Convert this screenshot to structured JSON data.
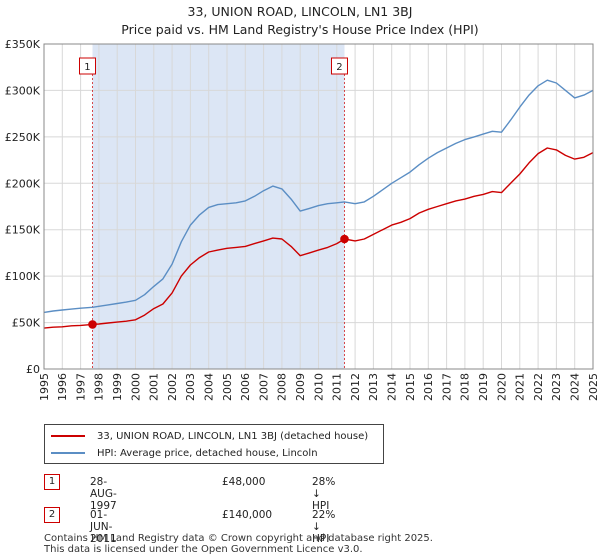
{
  "title": {
    "line1": "33, UNION ROAD, LINCOLN, LN1 3BJ",
    "line2": "Price paid vs. HM Land Registry's House Price Index (HPI)"
  },
  "colors": {
    "property": "#cc0000",
    "hpi": "#5b8ec4",
    "shade": "#dce6f5",
    "grid": "#d8d8d8"
  },
  "chart_data": {
    "type": "line",
    "title": "Price paid vs. HM Land Registry's House Price Index (HPI)",
    "xlabel": "",
    "ylabel": "",
    "xlim": [
      1995,
      2025
    ],
    "ylim": [
      0,
      350000
    ],
    "y_ticks": [
      0,
      50000,
      100000,
      150000,
      200000,
      250000,
      300000,
      350000
    ],
    "y_tick_labels": [
      "£0",
      "£50K",
      "£100K",
      "£150K",
      "£200K",
      "£250K",
      "£300K",
      "£350K"
    ],
    "x_tick_labels": [
      "1995",
      "1996",
      "1997",
      "1998",
      "1999",
      "2000",
      "2001",
      "2002",
      "2003",
      "2004",
      "2005",
      "2006",
      "2007",
      "2008",
      "2009",
      "2010",
      "2011",
      "2012",
      "2013",
      "2014",
      "2015",
      "2016",
      "2017",
      "2018",
      "2019",
      "2020",
      "2021",
      "2022",
      "2023",
      "2024",
      "2025"
    ],
    "shaded_range": [
      1997.65,
      2011.42
    ],
    "series": [
      {
        "name": "33, UNION ROAD, LINCOLN, LN1 3BJ (detached house)",
        "color": "#cc0000",
        "x": [
          1995,
          1995.5,
          1996,
          1996.5,
          1997,
          1997.65,
          1998,
          1998.5,
          1999,
          1999.5,
          2000,
          2000.5,
          2001,
          2001.5,
          2002,
          2002.5,
          2003,
          2003.5,
          2004,
          2004.5,
          2005,
          2005.5,
          2006,
          2006.5,
          2007,
          2007.5,
          2008,
          2008.5,
          2009,
          2009.5,
          2010,
          2010.5,
          2011,
          2011.42,
          2012,
          2012.5,
          2013,
          2013.5,
          2014,
          2014.5,
          2015,
          2015.5,
          2016,
          2016.5,
          2017,
          2017.5,
          2018,
          2018.5,
          2019,
          2019.5,
          2020,
          2020.5,
          2021,
          2021.5,
          2022,
          2022.5,
          2023,
          2023.5,
          2024,
          2024.5,
          2025
        ],
        "values": [
          44000,
          45000,
          45500,
          46500,
          47000,
          48000,
          48500,
          49500,
          50500,
          51500,
          53000,
          58000,
          65000,
          70000,
          82000,
          100000,
          112000,
          120000,
          126000,
          128000,
          130000,
          131000,
          132000,
          135000,
          138000,
          141000,
          140000,
          132000,
          122000,
          125000,
          128000,
          131000,
          135000,
          140000,
          138000,
          140000,
          145000,
          150000,
          155000,
          158000,
          162000,
          168000,
          172000,
          175000,
          178000,
          181000,
          183000,
          186000,
          188000,
          191000,
          190000,
          200000,
          210000,
          222000,
          232000,
          238000,
          236000,
          230000,
          226000,
          228000,
          233000
        ]
      },
      {
        "name": "HPI: Average price, detached house, Lincoln",
        "color": "#5b8ec4",
        "x": [
          1995,
          1995.5,
          1996,
          1996.5,
          1997,
          1997.65,
          1998,
          1998.5,
          1999,
          1999.5,
          2000,
          2000.5,
          2001,
          2001.5,
          2002,
          2002.5,
          2003,
          2003.5,
          2004,
          2004.5,
          2005,
          2005.5,
          2006,
          2006.5,
          2007,
          2007.5,
          2008,
          2008.5,
          2009,
          2009.5,
          2010,
          2010.5,
          2011,
          2011.42,
          2012,
          2012.5,
          2013,
          2013.5,
          2014,
          2014.5,
          2015,
          2015.5,
          2016,
          2016.5,
          2017,
          2017.5,
          2018,
          2018.5,
          2019,
          2019.5,
          2020,
          2020.5,
          2021,
          2021.5,
          2022,
          2022.5,
          2023,
          2023.5,
          2024,
          2024.5,
          2025
        ],
        "values": [
          61000,
          62500,
          63500,
          64500,
          65500,
          66500,
          67500,
          69000,
          70500,
          72000,
          74000,
          80000,
          89000,
          97000,
          113000,
          137000,
          155000,
          166000,
          174000,
          177000,
          178000,
          179000,
          181000,
          186000,
          192000,
          197000,
          194000,
          183000,
          170000,
          173000,
          176000,
          178000,
          179000,
          180000,
          178000,
          180000,
          186000,
          193000,
          200000,
          206000,
          212000,
          220000,
          227000,
          233000,
          238000,
          243000,
          247000,
          250000,
          253000,
          256000,
          255000,
          268000,
          282000,
          295000,
          305000,
          311000,
          308000,
          300000,
          292000,
          295000,
          300000
        ]
      }
    ],
    "annotations": [
      {
        "label": "1",
        "x": 1997.65
      },
      {
        "label": "2",
        "x": 2011.42
      }
    ],
    "sale_points": [
      {
        "x": 1997.65,
        "value": 48000
      },
      {
        "x": 2011.42,
        "value": 140000
      }
    ]
  },
  "legend": {
    "items": [
      {
        "label": "33, UNION ROAD, LINCOLN, LN1 3BJ (detached house)",
        "color": "#cc0000"
      },
      {
        "label": "HPI: Average price, detached house, Lincoln",
        "color": "#5b8ec4"
      }
    ]
  },
  "transactions": [
    {
      "num": "1",
      "date": "28-AUG-1997",
      "price": "£48,000",
      "hpi": "28% ↓ HPI"
    },
    {
      "num": "2",
      "date": "01-JUN-2011",
      "price": "£140,000",
      "hpi": "22% ↓ HPI"
    }
  ],
  "footer": {
    "line1": "Contains HM Land Registry data © Crown copyright and database right 2025.",
    "line2": "This data is licensed under the Open Government Licence v3.0."
  }
}
